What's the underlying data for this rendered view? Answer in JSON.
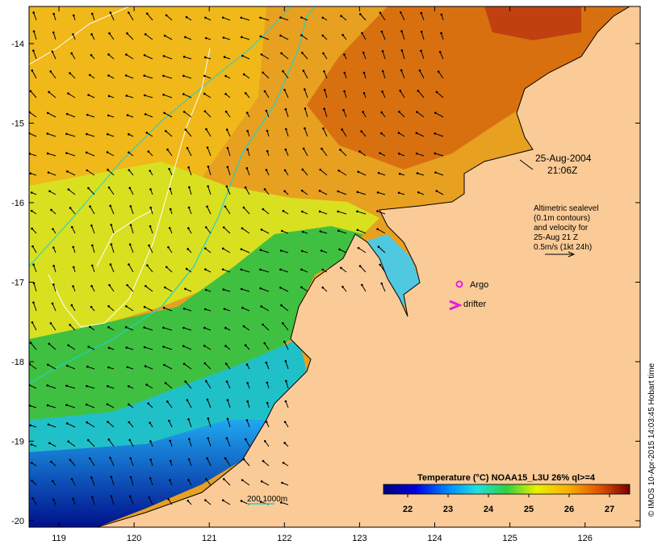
{
  "map": {
    "longitude_ticks": [
      "119",
      "120",
      "121",
      "122",
      "123",
      "124",
      "125",
      "126"
    ],
    "latitude_ticks": [
      "-14",
      "-15",
      "-16",
      "-17",
      "-18",
      "-19",
      "-20"
    ],
    "datetime_line1": "25-Aug-2004",
    "datetime_line2": "21:06Z",
    "sealevel_note": [
      "Altimetric sealevel",
      "(0.1m contours)",
      "and velocity for",
      "25-Aug 21 Z",
      "0.5m/s (1kt 24h)"
    ],
    "argo_label": "Argo",
    "drifter_label": "drifter",
    "depth_contour_label": "200  1000m",
    "colorbar_title": "Temperature (°C) NOAA15_L3U 26% ql>=4",
    "colorbar_ticks": [
      "22",
      "23",
      "24",
      "25",
      "26",
      "27"
    ],
    "colorbar_range": [
      21.4,
      27.5
    ],
    "credit": "© IMOS 10-Apr-2015 14:03:45 Hobart time",
    "colors": {
      "land": "#fbcb97",
      "argo_marker": "#e020e0",
      "drifter_marker": "#e020e0",
      "depth_200m": "#20d0d0",
      "sealevel_contour": "#ffffff"
    }
  }
}
